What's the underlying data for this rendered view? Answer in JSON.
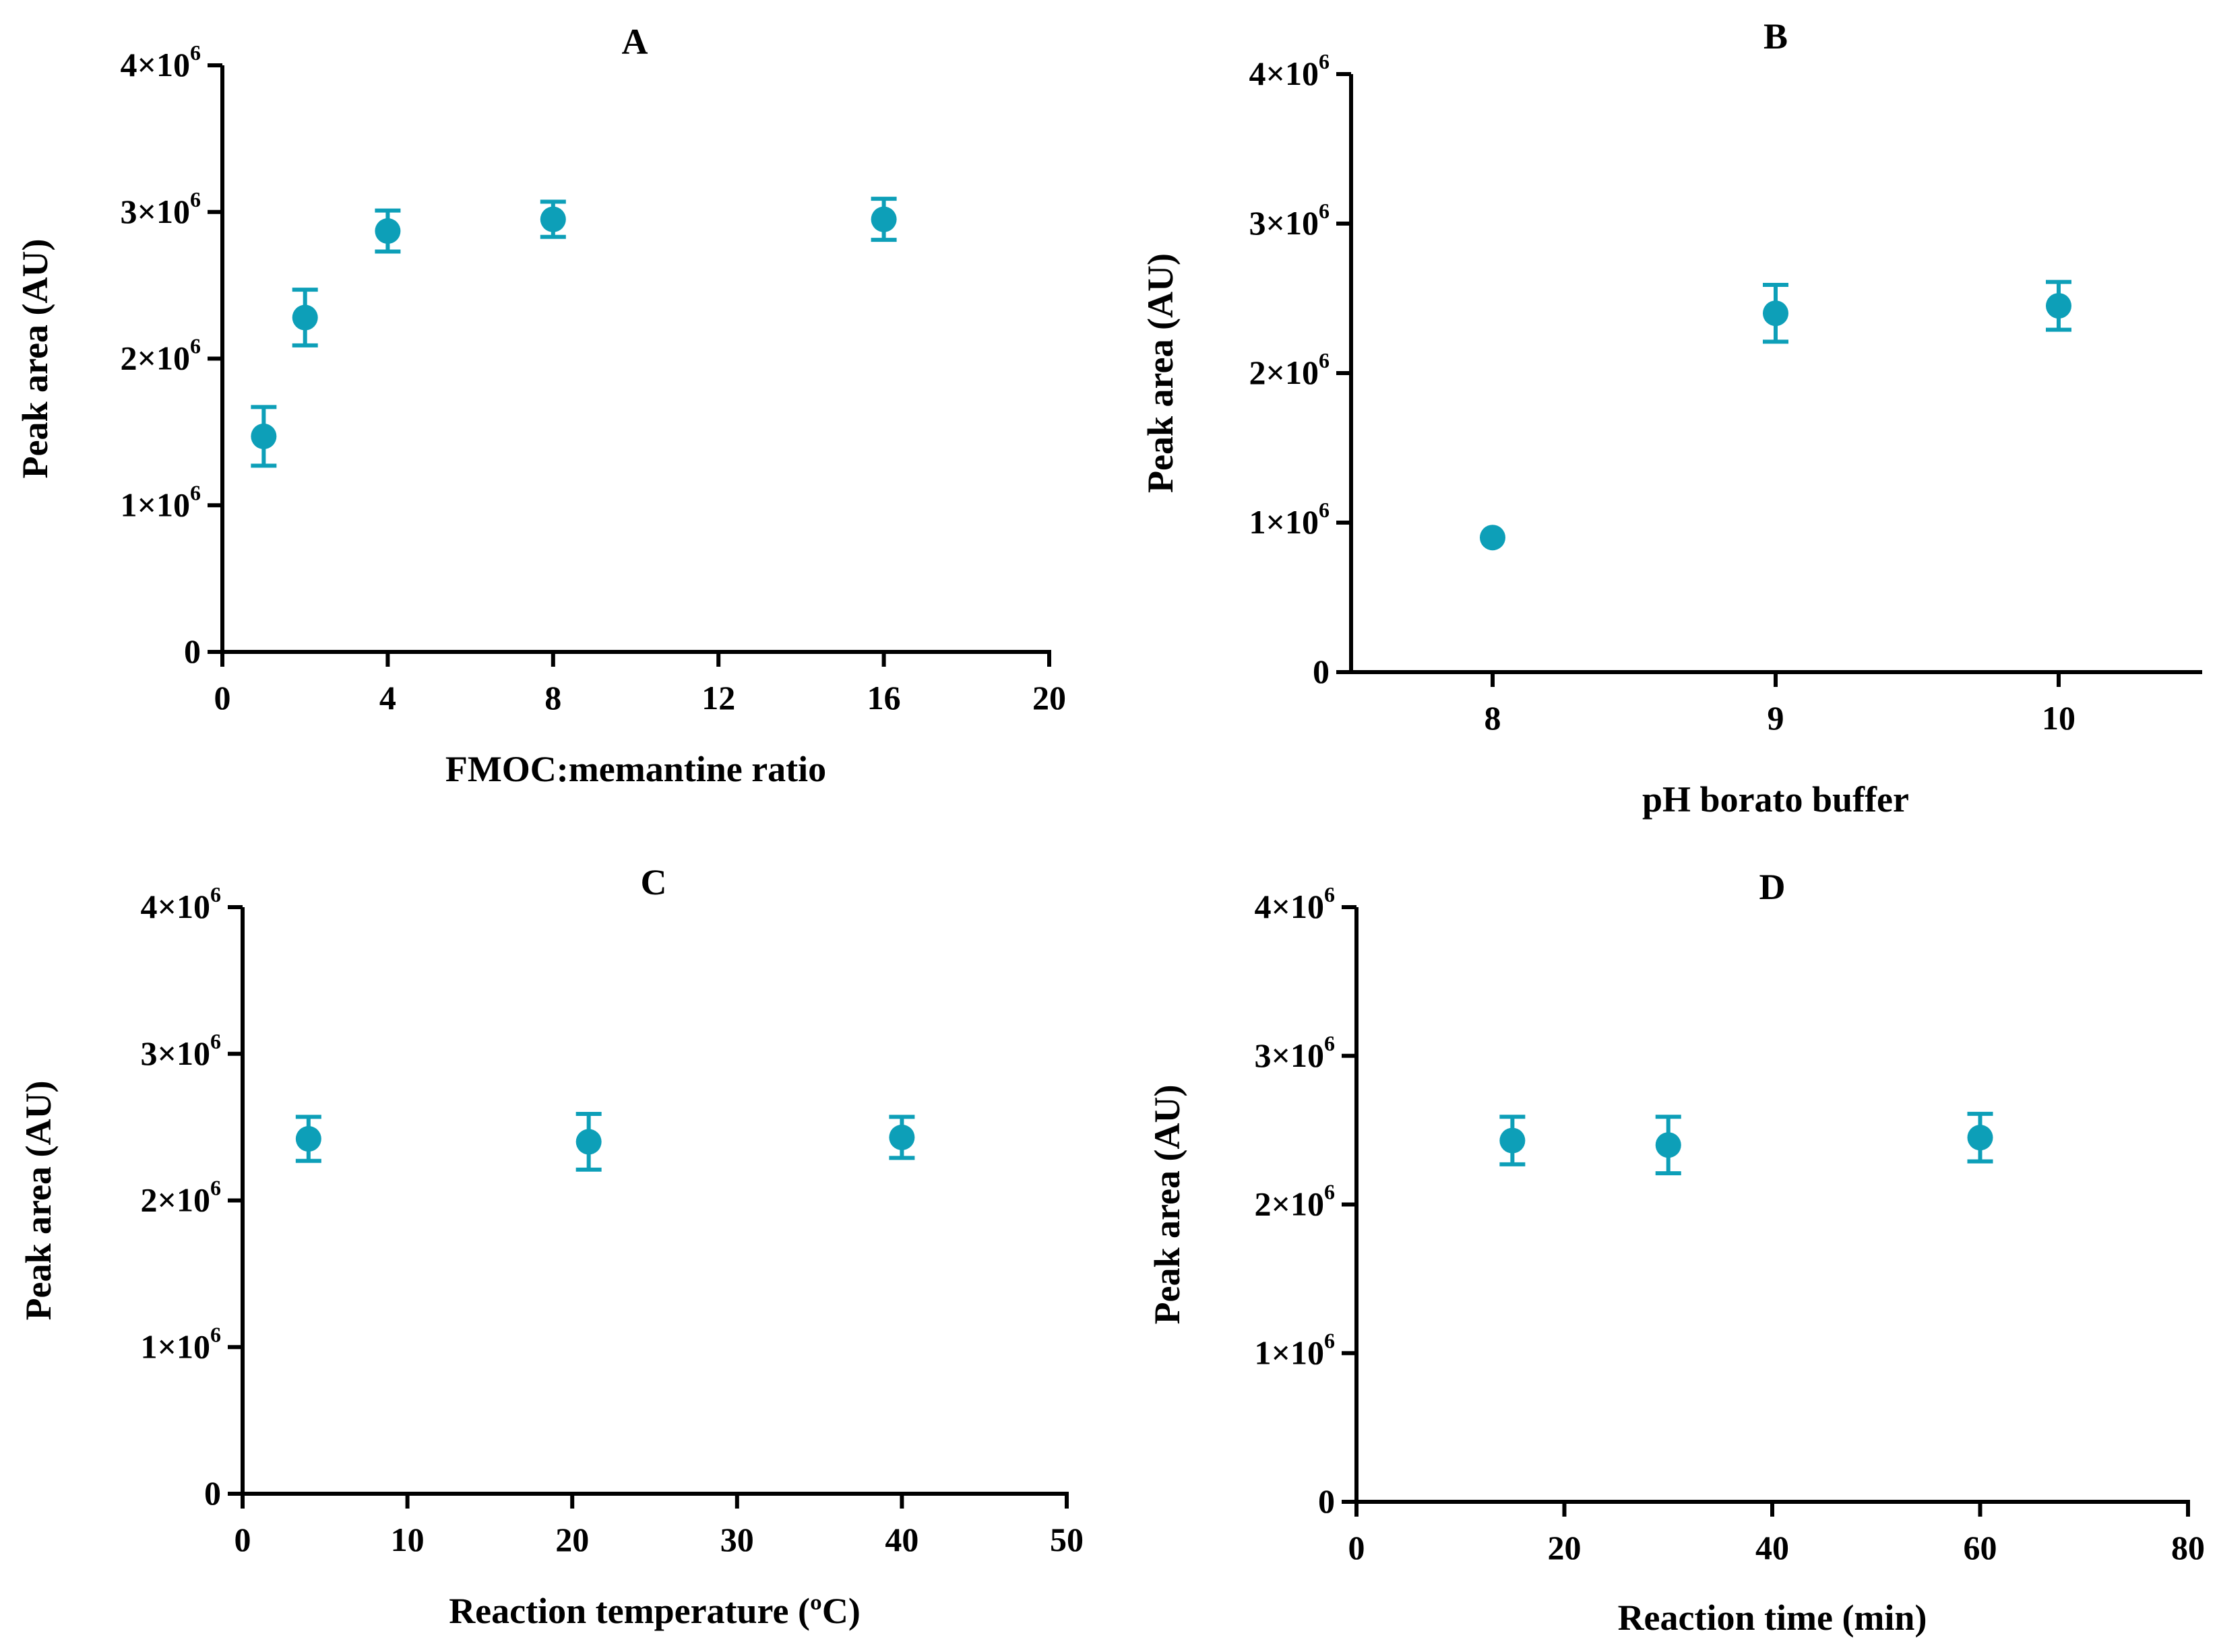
{
  "colors": {
    "marker": "#0d9fb8",
    "axis": "#000000"
  },
  "chart_data": [
    {
      "panel": "A",
      "type": "scatter",
      "title": "A",
      "xlabel": "FMOC:memantine ratio",
      "ylabel": "Peak area (AU)",
      "xlim": [
        0,
        20
      ],
      "ylim": [
        0,
        4000000
      ],
      "xticks": [
        0,
        4,
        8,
        12,
        16,
        20
      ],
      "xtick_labels": [
        "0",
        "4",
        "8",
        "12",
        "16",
        "20"
      ],
      "yticks": [
        0,
        1000000,
        2000000,
        3000000,
        4000000
      ],
      "ytick_labels": [
        {
          "base": "0",
          "exp": ""
        },
        {
          "base": "1×10",
          "exp": "6"
        },
        {
          "base": "2×10",
          "exp": "6"
        },
        {
          "base": "3×10",
          "exp": "6"
        },
        {
          "base": "4×10",
          "exp": "6"
        }
      ],
      "points": [
        {
          "x": 1,
          "y": 1470000,
          "err": 200000
        },
        {
          "x": 2,
          "y": 2280000,
          "err": 190000
        },
        {
          "x": 4,
          "y": 2870000,
          "err": 140000
        },
        {
          "x": 8,
          "y": 2950000,
          "err": 120000
        },
        {
          "x": 16,
          "y": 2950000,
          "err": 140000
        }
      ]
    },
    {
      "panel": "B",
      "type": "scatter",
      "title": "B",
      "xlabel": "pH borato buffer",
      "ylabel": "Peak area (AU)",
      "xlim": [
        7.5,
        10.5
      ],
      "ylim": [
        0,
        4000000
      ],
      "xticks": [
        8,
        9,
        10
      ],
      "xtick_labels": [
        "8",
        "9",
        "10"
      ],
      "yticks": [
        0,
        1000000,
        2000000,
        3000000,
        4000000
      ],
      "ytick_labels": [
        {
          "base": "0",
          "exp": ""
        },
        {
          "base": "1×10",
          "exp": "6"
        },
        {
          "base": "2×10",
          "exp": "6"
        },
        {
          "base": "3×10",
          "exp": "6"
        },
        {
          "base": "4×10",
          "exp": "6"
        }
      ],
      "points": [
        {
          "x": 8,
          "y": 900000,
          "err": 0
        },
        {
          "x": 9,
          "y": 2400000,
          "err": 190000
        },
        {
          "x": 10,
          "y": 2450000,
          "err": 160000
        }
      ]
    },
    {
      "panel": "C",
      "type": "scatter",
      "title": "C",
      "xlabel": "Reaction temperature (ºC)",
      "ylabel": "Peak area (AU)",
      "xlim": [
        0,
        50
      ],
      "ylim": [
        0,
        4000000
      ],
      "xticks": [
        0,
        10,
        20,
        30,
        40,
        50
      ],
      "xtick_labels": [
        "0",
        "10",
        "20",
        "30",
        "40",
        "50"
      ],
      "yticks": [
        0,
        1000000,
        2000000,
        3000000,
        4000000
      ],
      "ytick_labels": [
        {
          "base": "0",
          "exp": ""
        },
        {
          "base": "1×10",
          "exp": "6"
        },
        {
          "base": "2×10",
          "exp": "6"
        },
        {
          "base": "3×10",
          "exp": "6"
        },
        {
          "base": "4×10",
          "exp": "6"
        }
      ],
      "points": [
        {
          "x": 4,
          "y": 2420000,
          "err": 150000
        },
        {
          "x": 21,
          "y": 2400000,
          "err": 190000
        },
        {
          "x": 40,
          "y": 2430000,
          "err": 140000
        }
      ]
    },
    {
      "panel": "D",
      "type": "scatter",
      "title": "D",
      "xlabel": "Reaction time (min)",
      "ylabel": "Peak area (AU)",
      "xlim": [
        0,
        80
      ],
      "ylim": [
        0,
        4000000
      ],
      "xticks": [
        0,
        20,
        40,
        60,
        80
      ],
      "xtick_labels": [
        "0",
        "20",
        "40",
        "60",
        "80"
      ],
      "yticks": [
        0,
        1000000,
        2000000,
        3000000,
        4000000
      ],
      "ytick_labels": [
        {
          "base": "0",
          "exp": ""
        },
        {
          "base": "1×10",
          "exp": "6"
        },
        {
          "base": "2×10",
          "exp": "6"
        },
        {
          "base": "3×10",
          "exp": "6"
        },
        {
          "base": "4×10",
          "exp": "6"
        }
      ],
      "points": [
        {
          "x": 15,
          "y": 2430000,
          "err": 160000
        },
        {
          "x": 30,
          "y": 2400000,
          "err": 190000
        },
        {
          "x": 60,
          "y": 2450000,
          "err": 160000
        }
      ]
    }
  ]
}
